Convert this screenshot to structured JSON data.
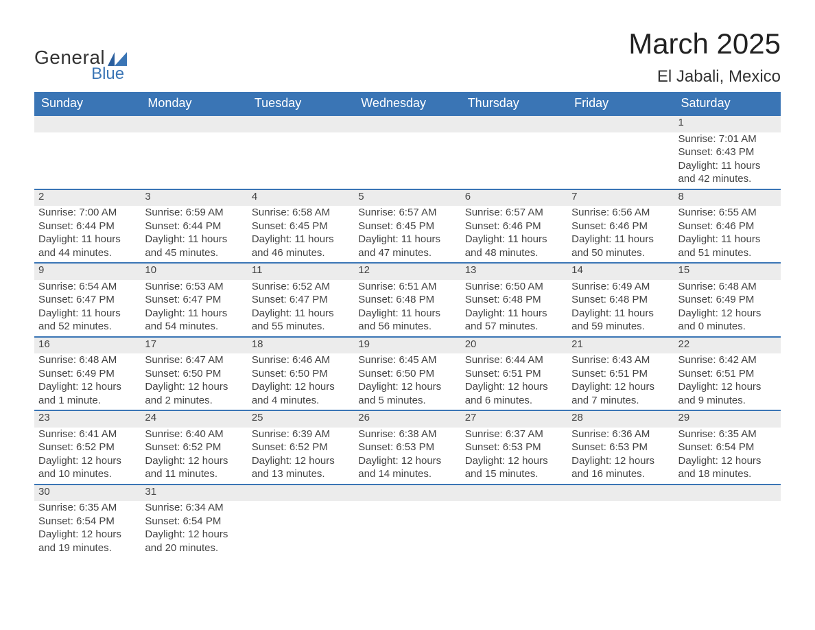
{
  "logo": {
    "general": "General",
    "blue": "Blue"
  },
  "title": "March 2025",
  "location": "El Jabali, Mexico",
  "colors": {
    "header_bg": "#3a75b5",
    "header_text": "#ffffff",
    "daynum_bg": "#ececec",
    "row_border": "#3a75b5",
    "body_text": "#444444",
    "background": "#ffffff"
  },
  "typography": {
    "title_fontsize": 42,
    "location_fontsize": 24,
    "header_fontsize": 18,
    "daynum_fontsize": 18,
    "cell_fontsize": 15,
    "font_family": "Arial"
  },
  "weekdays": [
    "Sunday",
    "Monday",
    "Tuesday",
    "Wednesday",
    "Thursday",
    "Friday",
    "Saturday"
  ],
  "weeks": [
    [
      null,
      null,
      null,
      null,
      null,
      null,
      {
        "day": "1",
        "sunrise": "Sunrise: 7:01 AM",
        "sunset": "Sunset: 6:43 PM",
        "daylight1": "Daylight: 11 hours",
        "daylight2": "and 42 minutes."
      }
    ],
    [
      {
        "day": "2",
        "sunrise": "Sunrise: 7:00 AM",
        "sunset": "Sunset: 6:44 PM",
        "daylight1": "Daylight: 11 hours",
        "daylight2": "and 44 minutes."
      },
      {
        "day": "3",
        "sunrise": "Sunrise: 6:59 AM",
        "sunset": "Sunset: 6:44 PM",
        "daylight1": "Daylight: 11 hours",
        "daylight2": "and 45 minutes."
      },
      {
        "day": "4",
        "sunrise": "Sunrise: 6:58 AM",
        "sunset": "Sunset: 6:45 PM",
        "daylight1": "Daylight: 11 hours",
        "daylight2": "and 46 minutes."
      },
      {
        "day": "5",
        "sunrise": "Sunrise: 6:57 AM",
        "sunset": "Sunset: 6:45 PM",
        "daylight1": "Daylight: 11 hours",
        "daylight2": "and 47 minutes."
      },
      {
        "day": "6",
        "sunrise": "Sunrise: 6:57 AM",
        "sunset": "Sunset: 6:46 PM",
        "daylight1": "Daylight: 11 hours",
        "daylight2": "and 48 minutes."
      },
      {
        "day": "7",
        "sunrise": "Sunrise: 6:56 AM",
        "sunset": "Sunset: 6:46 PM",
        "daylight1": "Daylight: 11 hours",
        "daylight2": "and 50 minutes."
      },
      {
        "day": "8",
        "sunrise": "Sunrise: 6:55 AM",
        "sunset": "Sunset: 6:46 PM",
        "daylight1": "Daylight: 11 hours",
        "daylight2": "and 51 minutes."
      }
    ],
    [
      {
        "day": "9",
        "sunrise": "Sunrise: 6:54 AM",
        "sunset": "Sunset: 6:47 PM",
        "daylight1": "Daylight: 11 hours",
        "daylight2": "and 52 minutes."
      },
      {
        "day": "10",
        "sunrise": "Sunrise: 6:53 AM",
        "sunset": "Sunset: 6:47 PM",
        "daylight1": "Daylight: 11 hours",
        "daylight2": "and 54 minutes."
      },
      {
        "day": "11",
        "sunrise": "Sunrise: 6:52 AM",
        "sunset": "Sunset: 6:47 PM",
        "daylight1": "Daylight: 11 hours",
        "daylight2": "and 55 minutes."
      },
      {
        "day": "12",
        "sunrise": "Sunrise: 6:51 AM",
        "sunset": "Sunset: 6:48 PM",
        "daylight1": "Daylight: 11 hours",
        "daylight2": "and 56 minutes."
      },
      {
        "day": "13",
        "sunrise": "Sunrise: 6:50 AM",
        "sunset": "Sunset: 6:48 PM",
        "daylight1": "Daylight: 11 hours",
        "daylight2": "and 57 minutes."
      },
      {
        "day": "14",
        "sunrise": "Sunrise: 6:49 AM",
        "sunset": "Sunset: 6:48 PM",
        "daylight1": "Daylight: 11 hours",
        "daylight2": "and 59 minutes."
      },
      {
        "day": "15",
        "sunrise": "Sunrise: 6:48 AM",
        "sunset": "Sunset: 6:49 PM",
        "daylight1": "Daylight: 12 hours",
        "daylight2": "and 0 minutes."
      }
    ],
    [
      {
        "day": "16",
        "sunrise": "Sunrise: 6:48 AM",
        "sunset": "Sunset: 6:49 PM",
        "daylight1": "Daylight: 12 hours",
        "daylight2": "and 1 minute."
      },
      {
        "day": "17",
        "sunrise": "Sunrise: 6:47 AM",
        "sunset": "Sunset: 6:50 PM",
        "daylight1": "Daylight: 12 hours",
        "daylight2": "and 2 minutes."
      },
      {
        "day": "18",
        "sunrise": "Sunrise: 6:46 AM",
        "sunset": "Sunset: 6:50 PM",
        "daylight1": "Daylight: 12 hours",
        "daylight2": "and 4 minutes."
      },
      {
        "day": "19",
        "sunrise": "Sunrise: 6:45 AM",
        "sunset": "Sunset: 6:50 PM",
        "daylight1": "Daylight: 12 hours",
        "daylight2": "and 5 minutes."
      },
      {
        "day": "20",
        "sunrise": "Sunrise: 6:44 AM",
        "sunset": "Sunset: 6:51 PM",
        "daylight1": "Daylight: 12 hours",
        "daylight2": "and 6 minutes."
      },
      {
        "day": "21",
        "sunrise": "Sunrise: 6:43 AM",
        "sunset": "Sunset: 6:51 PM",
        "daylight1": "Daylight: 12 hours",
        "daylight2": "and 7 minutes."
      },
      {
        "day": "22",
        "sunrise": "Sunrise: 6:42 AM",
        "sunset": "Sunset: 6:51 PM",
        "daylight1": "Daylight: 12 hours",
        "daylight2": "and 9 minutes."
      }
    ],
    [
      {
        "day": "23",
        "sunrise": "Sunrise: 6:41 AM",
        "sunset": "Sunset: 6:52 PM",
        "daylight1": "Daylight: 12 hours",
        "daylight2": "and 10 minutes."
      },
      {
        "day": "24",
        "sunrise": "Sunrise: 6:40 AM",
        "sunset": "Sunset: 6:52 PM",
        "daylight1": "Daylight: 12 hours",
        "daylight2": "and 11 minutes."
      },
      {
        "day": "25",
        "sunrise": "Sunrise: 6:39 AM",
        "sunset": "Sunset: 6:52 PM",
        "daylight1": "Daylight: 12 hours",
        "daylight2": "and 13 minutes."
      },
      {
        "day": "26",
        "sunrise": "Sunrise: 6:38 AM",
        "sunset": "Sunset: 6:53 PM",
        "daylight1": "Daylight: 12 hours",
        "daylight2": "and 14 minutes."
      },
      {
        "day": "27",
        "sunrise": "Sunrise: 6:37 AM",
        "sunset": "Sunset: 6:53 PM",
        "daylight1": "Daylight: 12 hours",
        "daylight2": "and 15 minutes."
      },
      {
        "day": "28",
        "sunrise": "Sunrise: 6:36 AM",
        "sunset": "Sunset: 6:53 PM",
        "daylight1": "Daylight: 12 hours",
        "daylight2": "and 16 minutes."
      },
      {
        "day": "29",
        "sunrise": "Sunrise: 6:35 AM",
        "sunset": "Sunset: 6:54 PM",
        "daylight1": "Daylight: 12 hours",
        "daylight2": "and 18 minutes."
      }
    ],
    [
      {
        "day": "30",
        "sunrise": "Sunrise: 6:35 AM",
        "sunset": "Sunset: 6:54 PM",
        "daylight1": "Daylight: 12 hours",
        "daylight2": "and 19 minutes."
      },
      {
        "day": "31",
        "sunrise": "Sunrise: 6:34 AM",
        "sunset": "Sunset: 6:54 PM",
        "daylight1": "Daylight: 12 hours",
        "daylight2": "and 20 minutes."
      },
      null,
      null,
      null,
      null,
      null
    ]
  ]
}
